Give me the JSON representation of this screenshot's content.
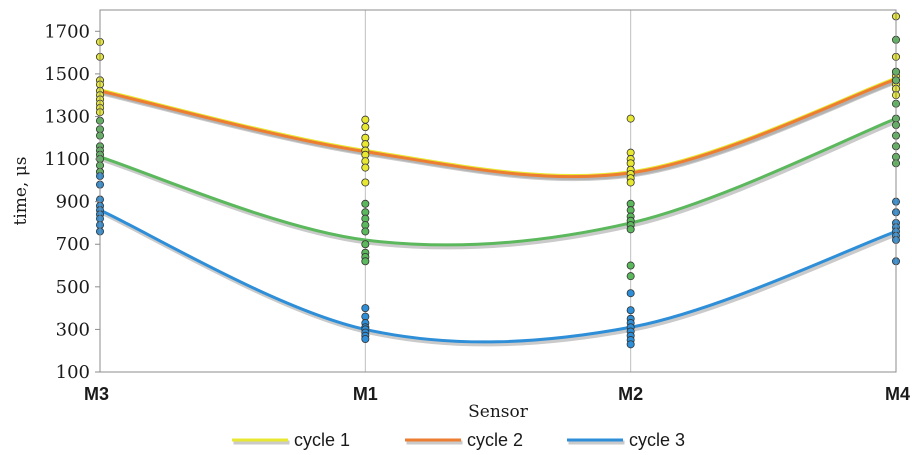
{
  "chart_data": {
    "type": "scatter",
    "xlabel": "Sensor",
    "ylabel": "time, μs",
    "categories": [
      "M3",
      "M1",
      "M2",
      "M4"
    ],
    "ylim": [
      100,
      1800
    ],
    "yticks": [
      100,
      300,
      500,
      700,
      900,
      1100,
      1300,
      1500,
      1700
    ],
    "grid": "vertical",
    "legend_position": "bottom",
    "series": [
      {
        "name": "cycle 1",
        "color": "#e8e832",
        "line": [
          1425,
          1140,
          1040,
          1480
        ],
        "points": [
          [
            1650,
            1580,
            1470,
            1450,
            1420,
            1400,
            1380,
            1360,
            1340,
            1320
          ],
          [
            1285,
            1250,
            1200,
            1170,
            1140,
            1120,
            1090,
            1060,
            990
          ],
          [
            1290,
            1130,
            1100,
            1080,
            1050,
            1030,
            1010,
            990
          ],
          [
            1770,
            1580,
            1510,
            1490,
            1470,
            1450,
            1430,
            1400
          ]
        ]
      },
      {
        "name": "cycle 2",
        "color": "#ed7d31",
        "line": [
          1420,
          1135,
          1035,
          1475
        ],
        "points": [
          [],
          [],
          [],
          []
        ]
      },
      {
        "name": "",
        "color": "#5cb85c",
        "line": [
          1110,
          720,
          800,
          1290
        ],
        "points": [
          [
            1280,
            1240,
            1210,
            1160,
            1140,
            1120,
            1100,
            1070,
            1040
          ],
          [
            890,
            850,
            820,
            790,
            760,
            700,
            660,
            640,
            620
          ],
          [
            890,
            860,
            830,
            810,
            790,
            770,
            600,
            550
          ],
          [
            1660,
            1510,
            1470,
            1360,
            1290,
            1260,
            1210,
            1160,
            1110,
            1080
          ]
        ]
      },
      {
        "name": "cycle 3",
        "color": "#2e8fd8",
        "line": [
          860,
          300,
          310,
          760
        ],
        "points": [
          [
            1020,
            980,
            910,
            880,
            860,
            840,
            820,
            790,
            760
          ],
          [
            400,
            360,
            330,
            310,
            300,
            285,
            270,
            255
          ],
          [
            470,
            390,
            350,
            330,
            310,
            290,
            270,
            250,
            230
          ],
          [
            900,
            850,
            800,
            780,
            760,
            740,
            720,
            620
          ]
        ]
      }
    ]
  }
}
